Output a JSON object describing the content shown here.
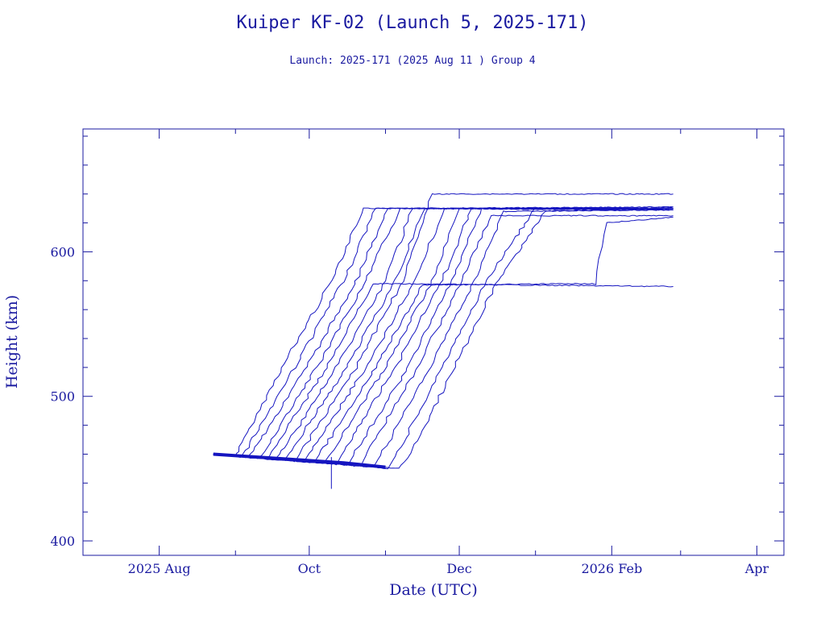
{
  "chart_data": {
    "type": "line",
    "title": "Kuiper KF-02 (Launch 5, 2025-171)",
    "subtitle": "Launch: 2025-171  (2025 Aug 11 )  Group 4",
    "xlabel": "Date (UTC)",
    "ylabel": "Height (km)",
    "x_ticks": [
      {
        "date": "2025-08-01",
        "label": "2025 Aug"
      },
      {
        "date": "2025-10-01",
        "label": "Oct"
      },
      {
        "date": "2025-12-01",
        "label": "Dec"
      },
      {
        "date": "2026-02-01",
        "label": "2026 Feb"
      },
      {
        "date": "2026-04-01",
        "label": "Apr"
      }
    ],
    "y_ticks": [
      400,
      500,
      600
    ],
    "xlim": [
      "2025-07-01",
      "2026-04-12"
    ],
    "ylim": [
      390,
      685
    ],
    "grid": false,
    "color": "#1a1aa0",
    "series_summary": "Many satellites start near 460 km, decline slowly to about 450 km, then raise orbit to ~630 km between early Sep and mid Dec 2025; some remain near 580 km.",
    "series": [
      {
        "points": [
          [
            "2025-08-23",
            460
          ],
          [
            "2025-09-01",
            459
          ],
          [
            "2025-09-02",
            462
          ],
          [
            "2025-09-20",
            520
          ],
          [
            "2025-10-10",
            580
          ],
          [
            "2025-10-23",
            630
          ],
          [
            "2026-02-26",
            630
          ]
        ]
      },
      {
        "points": [
          [
            "2025-08-23",
            460
          ],
          [
            "2025-09-03",
            458
          ],
          [
            "2025-09-06",
            465
          ],
          [
            "2025-09-25",
            520
          ],
          [
            "2025-10-15",
            580
          ],
          [
            "2025-10-28",
            630
          ],
          [
            "2026-02-26",
            629
          ]
        ]
      },
      {
        "points": [
          [
            "2025-08-23",
            460
          ],
          [
            "2025-09-06",
            458
          ],
          [
            "2025-09-08",
            462
          ],
          [
            "2025-09-30",
            520
          ],
          [
            "2025-10-20",
            580
          ],
          [
            "2025-11-02",
            630
          ],
          [
            "2026-02-26",
            630
          ]
        ]
      },
      {
        "points": [
          [
            "2025-08-23",
            460
          ],
          [
            "2025-09-10",
            457
          ],
          [
            "2025-09-12",
            460
          ],
          [
            "2025-10-04",
            520
          ],
          [
            "2025-10-24",
            580
          ],
          [
            "2025-11-07",
            630
          ],
          [
            "2026-02-26",
            631
          ]
        ]
      },
      {
        "points": [
          [
            "2025-08-23",
            460
          ],
          [
            "2025-09-14",
            457
          ],
          [
            "2025-09-16",
            462
          ],
          [
            "2025-10-08",
            520
          ],
          [
            "2025-10-27",
            578
          ],
          [
            "2026-02-26",
            576
          ]
        ]
      },
      {
        "points": [
          [
            "2025-08-23",
            460
          ],
          [
            "2025-09-17",
            456
          ],
          [
            "2025-09-20",
            462
          ],
          [
            "2025-10-12",
            520
          ],
          [
            "2025-11-01",
            580
          ],
          [
            "2025-11-12",
            630
          ],
          [
            "2026-02-26",
            630
          ]
        ]
      },
      {
        "points": [
          [
            "2025-08-23",
            460
          ],
          [
            "2025-09-21",
            456
          ],
          [
            "2025-09-24",
            463
          ],
          [
            "2025-10-16",
            520
          ],
          [
            "2025-11-05",
            580
          ],
          [
            "2025-11-17",
            630
          ],
          [
            "2026-02-26",
            629
          ]
        ]
      },
      {
        "points": [
          [
            "2025-08-23",
            460
          ],
          [
            "2025-09-25",
            455
          ],
          [
            "2025-09-28",
            462
          ],
          [
            "2025-10-20",
            520
          ],
          [
            "2025-11-08",
            580
          ],
          [
            "2025-11-20",
            640
          ],
          [
            "2026-02-26",
            640
          ]
        ]
      },
      {
        "points": [
          [
            "2025-08-23",
            460
          ],
          [
            "2025-09-29",
            455
          ],
          [
            "2025-10-02",
            463
          ],
          [
            "2025-10-24",
            520
          ],
          [
            "2025-11-13",
            580
          ],
          [
            "2025-11-25",
            630
          ],
          [
            "2026-02-26",
            630
          ]
        ]
      },
      {
        "points": [
          [
            "2025-08-23",
            460
          ],
          [
            "2025-10-03",
            454
          ],
          [
            "2025-10-06",
            462
          ],
          [
            "2025-10-28",
            520
          ],
          [
            "2025-11-16",
            577
          ],
          [
            "2026-01-25",
            578
          ],
          [
            "2026-01-30",
            620
          ],
          [
            "2026-02-26",
            624
          ]
        ]
      },
      {
        "points": [
          [
            "2025-08-23",
            460
          ],
          [
            "2025-10-07",
            454
          ],
          [
            "2025-10-10",
            461
          ],
          [
            "2025-11-01",
            520
          ],
          [
            "2025-11-20",
            580
          ],
          [
            "2025-12-01",
            630
          ],
          [
            "2026-02-26",
            630
          ]
        ]
      },
      {
        "points": [
          [
            "2025-08-23",
            460
          ],
          [
            "2025-10-12",
            453
          ],
          [
            "2025-10-15",
            462
          ],
          [
            "2025-11-05",
            520
          ],
          [
            "2025-11-24",
            580
          ],
          [
            "2025-12-06",
            630
          ],
          [
            "2026-02-26",
            630
          ]
        ]
      },
      {
        "points": [
          [
            "2025-08-23",
            460
          ],
          [
            "2025-10-17",
            453
          ],
          [
            "2025-10-20",
            462
          ],
          [
            "2025-11-10",
            520
          ],
          [
            "2025-11-28",
            580
          ],
          [
            "2025-12-10",
            630
          ],
          [
            "2026-02-26",
            631
          ]
        ]
      },
      {
        "points": [
          [
            "2025-08-23",
            460
          ],
          [
            "2025-10-22",
            452
          ],
          [
            "2025-10-25",
            462
          ],
          [
            "2025-11-14",
            520
          ],
          [
            "2025-12-02",
            580
          ],
          [
            "2025-12-14",
            625
          ],
          [
            "2026-02-26",
            625
          ]
        ]
      },
      {
        "points": [
          [
            "2025-08-23",
            460
          ],
          [
            "2025-10-27",
            451
          ],
          [
            "2025-10-31",
            462
          ],
          [
            "2025-11-19",
            520
          ],
          [
            "2025-12-07",
            580
          ],
          [
            "2025-12-19",
            628
          ],
          [
            "2026-02-26",
            629
          ]
        ]
      },
      {
        "points": [
          [
            "2025-08-23",
            460
          ],
          [
            "2025-11-02",
            450
          ],
          [
            "2025-11-06",
            461
          ],
          [
            "2025-11-24",
            520
          ],
          [
            "2025-12-12",
            580
          ],
          [
            "2026-01-01",
            630
          ],
          [
            "2026-02-26",
            629
          ]
        ]
      },
      {
        "points": [
          [
            "2025-08-23",
            460
          ],
          [
            "2025-11-07",
            450
          ],
          [
            "2025-11-12",
            463
          ],
          [
            "2025-11-29",
            520
          ],
          [
            "2025-12-15",
            575
          ],
          [
            "2026-01-05",
            628
          ],
          [
            "2026-02-26",
            630
          ]
        ]
      }
    ]
  }
}
